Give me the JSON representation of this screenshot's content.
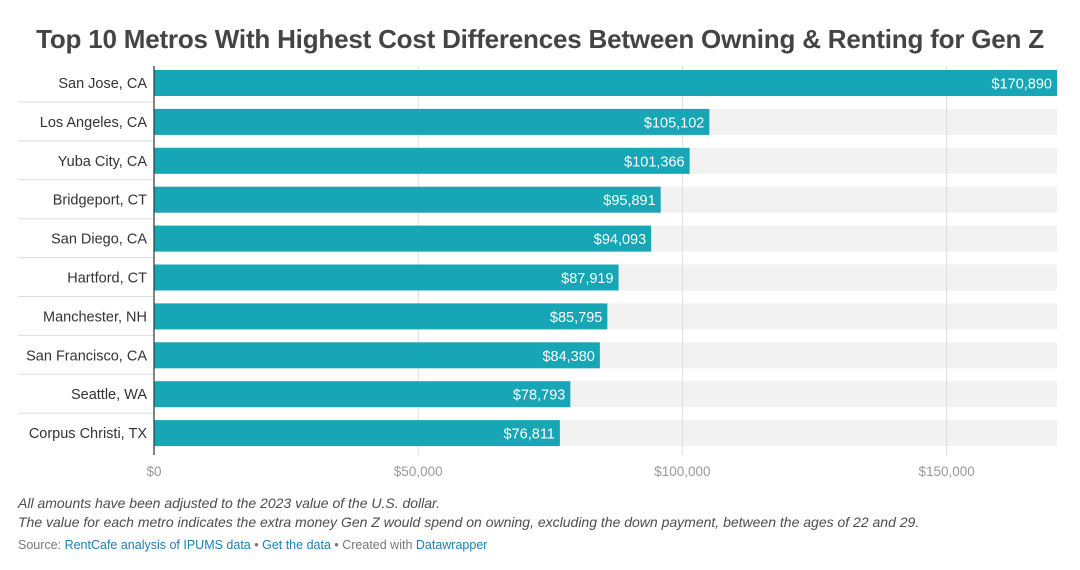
{
  "chart_data": {
    "type": "bar",
    "orientation": "horizontal",
    "title": "Top 10 Metros With Highest Cost Differences Between Owning & Renting for Gen Z",
    "categories": [
      "San Jose, CA",
      "Los Angeles, CA",
      "Yuba City, CA",
      "Bridgeport, CT",
      "San Diego, CA",
      "Hartford, CT",
      "Manchester, NH",
      "San Francisco, CA",
      "Seattle, WA",
      "Corpus Christi, TX"
    ],
    "values": [
      170890,
      105102,
      101366,
      95891,
      94093,
      87919,
      85795,
      84380,
      78793,
      76811
    ],
    "value_labels": [
      "$170,890",
      "$105,102",
      "$101,366",
      "$95,891",
      "$94,093",
      "$87,919",
      "$85,795",
      "$84,380",
      "$78,793",
      "$76,811"
    ],
    "x_ticks": [
      0,
      50000,
      100000,
      150000
    ],
    "x_tick_labels": [
      "$0",
      "$50,000",
      "$100,000",
      "$150,000"
    ],
    "xlim": [
      0,
      170890
    ],
    "bar_color": "#16a6b6",
    "track_color": "#f2f2f2",
    "grid": true
  },
  "notes": {
    "line1": "All amounts have been adjusted to the 2023 value of the U.S. dollar.",
    "line2": "The value for each metro indicates the extra money Gen Z would spend on owning, excluding the down payment, between the ages of 22 and 29."
  },
  "source": {
    "prefix": "Source: ",
    "link": "RentCafe analysis of IPUMS data",
    "sep1": " • ",
    "get_data": "Get the data",
    "sep2": " • Created with ",
    "tool": "Datawrapper"
  }
}
